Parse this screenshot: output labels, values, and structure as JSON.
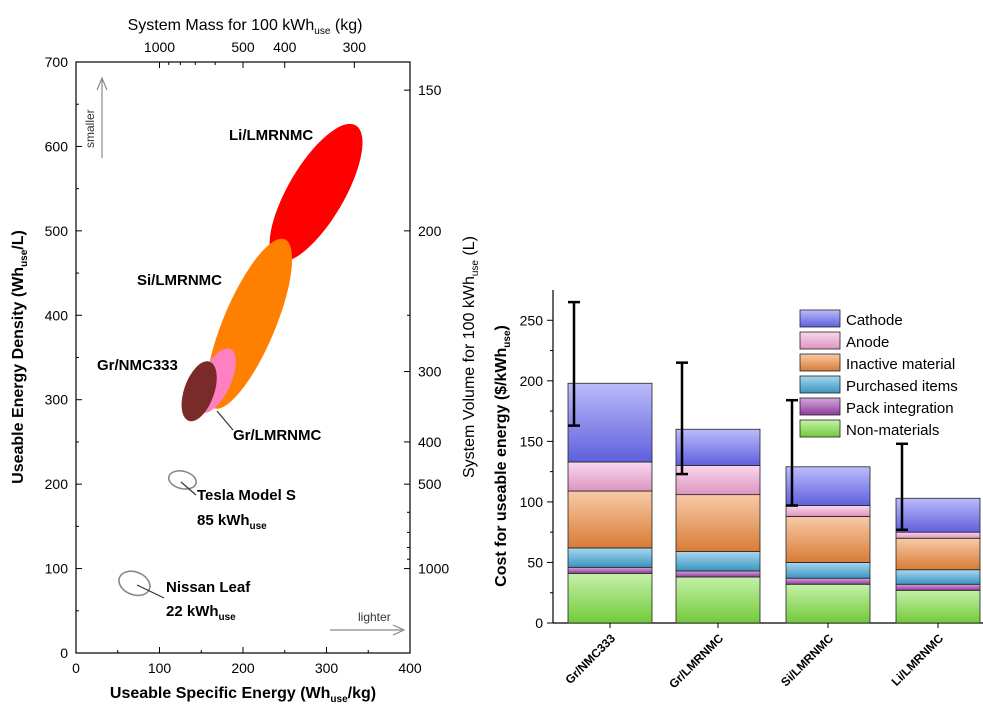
{
  "colors": {
    "Li/LMRNMC": "#ff0000",
    "Si/LMRNMC": "#ff8000",
    "Gr/LMRNMC": "#ff80c0",
    "Gr/NMC333": "#7a2a28",
    "vehicle_outline": "#888888",
    "Cathode": "#6a6af5",
    "Anode": "#f4a6d6",
    "Inactive material": "#f08a3c",
    "Purchased items": "#3fa6d8",
    "Pack integration": "#a040b0",
    "Non-materials": "#7fe040"
  },
  "chart_data": [
    {
      "type": "scatter",
      "x_axis": {
        "label_pre": "Useable Specific Energy (Wh",
        "label_sub": "use",
        "label_post": "/kg)",
        "range": [
          0,
          400
        ],
        "ticks": [
          "0",
          "100",
          "200",
          "300",
          "400"
        ]
      },
      "y_axis": {
        "label_pre": "Useable Energy Density (Wh",
        "label_sub": "use",
        "label_post": "/L)",
        "range": [
          0,
          700
        ],
        "ticks": [
          "0",
          "100",
          "200",
          "300",
          "400",
          "500",
          "600",
          "700"
        ]
      },
      "top_axis": {
        "label_pre": "System Mass for 100 kWh",
        "label_sub": "use",
        "label_post": " (kg)",
        "ticks": [
          {
            "label": "1000",
            "value": 1000
          },
          {
            "label": "500",
            "value": 500
          },
          {
            "label": "400",
            "value": 400
          },
          {
            "label": "300",
            "value": 300
          }
        ]
      },
      "right_axis": {
        "label_pre": "System Volume for 100 kWh",
        "label_sub": "use",
        "label_post": " (L)",
        "ticks": [
          {
            "label": "150",
            "value": 150
          },
          {
            "label": "200",
            "value": 200
          },
          {
            "label": "300",
            "value": 300
          },
          {
            "label": "400",
            "value": 400
          },
          {
            "label": "500",
            "value": 500
          },
          {
            "label": "1000",
            "value": 1000
          }
        ]
      },
      "series": [
        {
          "name": "Li/LMRNMC",
          "specific_energy": [
            240,
            335
          ],
          "energy_density": [
            465,
            625
          ]
        },
        {
          "name": "Si/LMRNMC",
          "specific_energy": [
            165,
            250
          ],
          "energy_density": [
            290,
            490
          ]
        },
        {
          "name": "Gr/LMRNMC",
          "specific_energy": [
            150,
            185
          ],
          "energy_density": [
            285,
            360
          ]
        },
        {
          "name": "Gr/NMC333",
          "specific_energy": [
            135,
            160
          ],
          "energy_density": [
            275,
            345
          ]
        },
        {
          "name_pre": "Tesla Model S",
          "name_line2": "85 kWh",
          "name_sub": "use",
          "style": "outline",
          "specific_energy": [
            125,
            130
          ],
          "energy_density": [
            195,
            215
          ]
        },
        {
          "name_pre": "Nissan Leaf",
          "name_line2": "22 kWh",
          "name_sub": "use",
          "style": "outline",
          "specific_energy": [
            65,
            75
          ],
          "energy_density": [
            70,
            95
          ]
        }
      ],
      "annotations": {
        "smaller": "smaller",
        "lighter": "lighter"
      }
    },
    {
      "type": "bar",
      "stacked": true,
      "categories": [
        "Gr/NMC333",
        "Gr/LMRNMC",
        "Si/LMRNMC",
        "Li/LMRNMC"
      ],
      "y_axis": {
        "label_pre": "Cost for useable energy ($/kWh",
        "label_sub": "use",
        "label_post": ")",
        "range": [
          0,
          275
        ],
        "ticks": [
          "0",
          "50",
          "100",
          "150",
          "200",
          "250"
        ]
      },
      "series": [
        {
          "name": "Non-materials",
          "values": [
            41,
            38,
            32,
            27
          ]
        },
        {
          "name": "Pack integration",
          "values": [
            5,
            5,
            5,
            5
          ]
        },
        {
          "name": "Purchased items",
          "values": [
            16,
            16,
            13,
            12
          ]
        },
        {
          "name": "Inactive material",
          "values": [
            47,
            47,
            38,
            26
          ]
        },
        {
          "name": "Anode",
          "values": [
            24,
            24,
            9,
            5
          ]
        },
        {
          "name": "Cathode",
          "values": [
            65,
            30,
            32,
            28
          ]
        }
      ],
      "error_bars": [
        [
          163,
          265
        ],
        [
          123,
          215
        ],
        [
          97,
          184
        ],
        [
          77,
          148
        ]
      ],
      "legend": [
        "Cathode",
        "Anode",
        "Inactive material",
        "Purchased items",
        "Pack integration",
        "Non-materials"
      ],
      "legend_position": "top-right"
    }
  ]
}
